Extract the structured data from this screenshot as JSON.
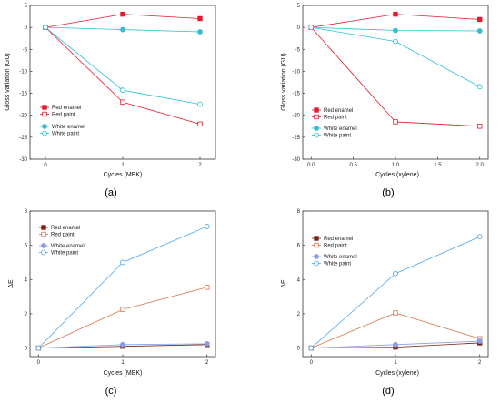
{
  "chart_data": [
    {
      "type": "line",
      "caption": "(a)",
      "xlabel": "Cycles (MEK)",
      "ylabel": "Gloss variation (GU)",
      "xlim": [
        -0.2,
        2.2
      ],
      "ylim": [
        -30,
        5
      ],
      "xticks": [
        0,
        1,
        2
      ],
      "xtick_labels": [
        "0",
        "1",
        "2"
      ],
      "yticks": [
        5,
        0,
        -5,
        -10,
        -15,
        -20,
        -25,
        -30
      ],
      "ytick_labels": [
        "5",
        "0",
        "-5",
        "-10",
        "-15",
        "-20",
        "-25",
        "-30"
      ],
      "legend_position": "lower-left",
      "series": [
        {
          "name": "Red enamel",
          "color": "#e8192c",
          "marker": "filled-square",
          "x": [
            0,
            1,
            2
          ],
          "y": [
            0,
            3,
            2
          ]
        },
        {
          "name": "Red paint",
          "color": "#e8192c",
          "marker": "open-square",
          "x": [
            0,
            1,
            2
          ],
          "y": [
            0,
            -17,
            -22
          ]
        },
        {
          "name": "White enamel",
          "color": "#2bc0d4",
          "marker": "filled-circle",
          "x": [
            0,
            1,
            2
          ],
          "y": [
            0,
            -0.5,
            -1
          ]
        },
        {
          "name": "White paint",
          "color": "#2bc0d4",
          "marker": "open-circle",
          "x": [
            0,
            1,
            2
          ],
          "y": [
            0,
            -14.3,
            -17.5
          ]
        }
      ]
    },
    {
      "type": "line",
      "caption": "(b)",
      "xlabel": "Cycles (xylene)",
      "ylabel": "Gloss variation (GU)",
      "xlim": [
        -0.1,
        2.1
      ],
      "ylim": [
        -30,
        5
      ],
      "xticks": [
        0,
        0.5,
        1,
        1.5,
        2
      ],
      "xtick_labels": [
        "0.0",
        "0.5",
        "1.0",
        "1.5",
        "2.0"
      ],
      "yticks": [
        5,
        0,
        -5,
        -10,
        -15,
        -20,
        -25,
        -30
      ],
      "ytick_labels": [
        "5",
        "0",
        "-5",
        "-10",
        "-15",
        "-20",
        "-25",
        "-30"
      ],
      "legend_position": "lower-left",
      "series": [
        {
          "name": "Red enamel",
          "color": "#e8192c",
          "marker": "filled-square",
          "x": [
            0,
            1,
            2
          ],
          "y": [
            0,
            3,
            1.8
          ]
        },
        {
          "name": "Red paint",
          "color": "#e8192c",
          "marker": "open-square",
          "x": [
            0,
            1,
            2
          ],
          "y": [
            0,
            -21.5,
            -22.5
          ]
        },
        {
          "name": "White enamel",
          "color": "#2bc0d4",
          "marker": "filled-circle",
          "x": [
            0,
            1,
            2
          ],
          "y": [
            0,
            -0.7,
            -0.8
          ]
        },
        {
          "name": "White paint",
          "color": "#2bc0d4",
          "marker": "open-circle",
          "x": [
            0,
            1,
            2
          ],
          "y": [
            0,
            -3.2,
            -13.5
          ]
        }
      ]
    },
    {
      "type": "line",
      "caption": "(c)",
      "xlabel": "Cycles (MEK)",
      "ylabel": "ΔE",
      "xlim": [
        -0.1,
        2.1
      ],
      "ylim": [
        -0.5,
        8
      ],
      "xticks": [
        0,
        1,
        2
      ],
      "xtick_labels": [
        "0",
        "1",
        "2"
      ],
      "yticks": [
        0,
        2,
        4,
        6,
        8
      ],
      "ytick_labels": [
        "0",
        "2",
        "4",
        "6",
        "8"
      ],
      "legend_position": "upper-left",
      "series": [
        {
          "name": "Red enamel",
          "color": "#7a2410",
          "marker": "filled-square",
          "x": [
            0,
            1,
            2
          ],
          "y": [
            0,
            0.1,
            0.2
          ]
        },
        {
          "name": "Red paint",
          "color": "#d9744b",
          "marker": "open-square",
          "x": [
            0,
            1,
            2
          ],
          "y": [
            0,
            2.25,
            3.55
          ]
        },
        {
          "name": "White enamel",
          "color": "#8b9de8",
          "marker": "filled-circle",
          "x": [
            0,
            1,
            2
          ],
          "y": [
            0,
            0.2,
            0.25
          ]
        },
        {
          "name": "White paint",
          "color": "#4fa8f0",
          "marker": "open-circle",
          "x": [
            0,
            1,
            2
          ],
          "y": [
            0,
            5,
            7.1
          ]
        }
      ]
    },
    {
      "type": "line",
      "caption": "(d)",
      "xlabel": "Cycles (xylene)",
      "ylabel": "ΔE",
      "xlim": [
        -0.1,
        2.1
      ],
      "ylim": [
        -0.5,
        8
      ],
      "xticks": [
        0,
        1,
        2
      ],
      "xtick_labels": [
        "0",
        "1",
        "2"
      ],
      "yticks": [
        0,
        2,
        4,
        6,
        8
      ],
      "ytick_labels": [
        "0",
        "2",
        "4",
        "6",
        "8"
      ],
      "legend_position": "upper-left",
      "series": [
        {
          "name": "Red enamel",
          "color": "#7a2410",
          "marker": "filled-square",
          "x": [
            0,
            1,
            2
          ],
          "y": [
            0,
            0.05,
            0.3
          ]
        },
        {
          "name": "Red paint",
          "color": "#d9744b",
          "marker": "open-square",
          "x": [
            0,
            1,
            2
          ],
          "y": [
            0,
            2.05,
            0.55
          ]
        },
        {
          "name": "White enamel",
          "color": "#8b9de8",
          "marker": "filled-circle",
          "x": [
            0,
            1,
            2
          ],
          "y": [
            0,
            0.2,
            0.4
          ]
        },
        {
          "name": "White paint",
          "color": "#4fa8f0",
          "marker": "open-circle",
          "x": [
            0,
            1,
            2
          ],
          "y": [
            0,
            4.35,
            6.5
          ]
        }
      ]
    }
  ]
}
